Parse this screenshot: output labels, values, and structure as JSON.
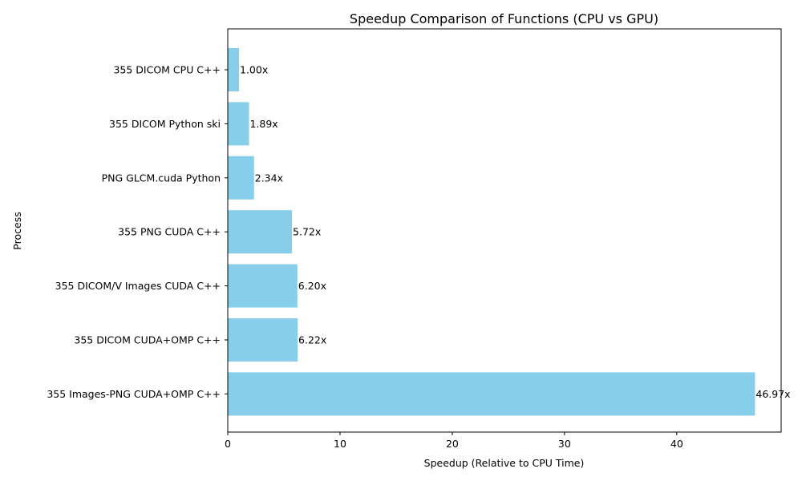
{
  "chart_data": {
    "type": "bar",
    "orientation": "horizontal",
    "title": "Speedup Comparison of Functions (CPU vs GPU)",
    "xlabel": "Speedup (Relative to CPU Time)",
    "ylabel": "Process",
    "xlim": [
      0,
      49.3
    ],
    "xticks": [
      0,
      10,
      20,
      30,
      40
    ],
    "categories": [
      "355 DICOM CPU C++",
      "355 DICOM Python ski",
      "PNG GLCM.cuda Python",
      "355 PNG CUDA C++",
      "355 DICOM/V Images CUDA C++",
      "355 DICOM CUDA+OMP C++",
      "355 Images-PNG CUDA+OMP C++"
    ],
    "values": [
      1.0,
      1.89,
      2.34,
      5.72,
      6.2,
      6.22,
      46.97
    ],
    "data_labels": [
      "1.00x",
      "1.89x",
      "2.34x",
      "5.72x",
      "6.20x",
      "6.22x",
      "46.97x"
    ],
    "bar_color": "#87ceeb",
    "grid": false,
    "legend": "none"
  }
}
